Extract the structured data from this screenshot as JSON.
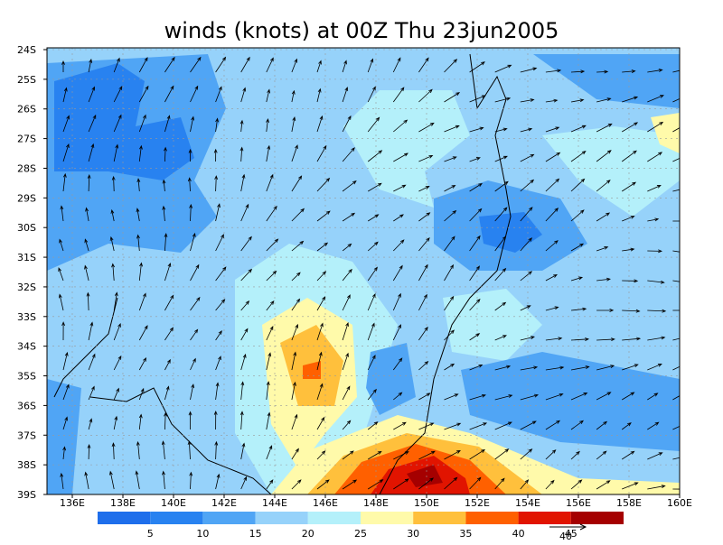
{
  "title": "winds (knots) at 00Z Thu 23jun2005",
  "map": {
    "lat_labels": [
      "24S",
      "25S",
      "26S",
      "27S",
      "28S",
      "29S",
      "30S",
      "31S",
      "32S",
      "33S",
      "34S",
      "35S",
      "36S",
      "37S",
      "38S",
      "39S"
    ],
    "lon_labels": [
      "136E",
      "138E",
      "140E",
      "142E",
      "144E",
      "146E",
      "148E",
      "150E",
      "152E",
      "154E",
      "156E",
      "158E",
      "160E"
    ],
    "colorbar": {
      "levels": [
        5,
        10,
        15,
        20,
        25,
        30,
        35,
        40,
        45
      ],
      "colors": [
        "#1e6eeb",
        "#2882f0",
        "#50a5f5",
        "#96d2fa",
        "#b4f0fa",
        "#fffaaa",
        "#ffc03c",
        "#ff6000",
        "#e11400",
        "#a50000"
      ]
    },
    "reference_vector_label": 40
  }
}
